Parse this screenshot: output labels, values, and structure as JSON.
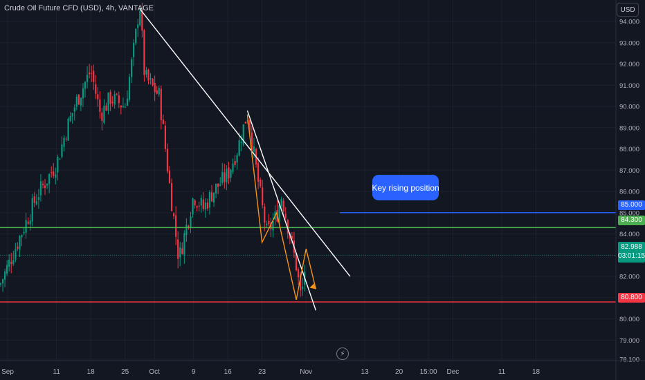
{
  "header": {
    "symbol_title": "Crude Oil Future CFD (USD), 4h, VANTAGE",
    "currency": "USD"
  },
  "annotation": {
    "callout_text": "Key rising position"
  },
  "price_tags": {
    "blue": {
      "label": "85.000",
      "color": "#2962ff"
    },
    "green": {
      "label": "84.300",
      "color": "#4caf50"
    },
    "red": {
      "label": "80.800",
      "color": "#f23645"
    },
    "last_price": "82.988",
    "countdown": "03:01:15"
  },
  "icons": {
    "bottom": "lightning-icon"
  },
  "chart_data": {
    "type": "candlestick",
    "y_axis": {
      "range": [
        77.9,
        94.9
      ],
      "ticks": [
        "78.100",
        "79.000",
        "80.000",
        "81.000",
        "82.000",
        "83.000",
        "84.000",
        "85.000",
        "86.000",
        "87.000",
        "88.000",
        "89.000",
        "90.000",
        "91.000",
        "92.000",
        "93.000",
        "94.000"
      ]
    },
    "x_axis": {
      "ticks": [
        "Sep",
        "11",
        "18",
        "25",
        "Oct",
        "9",
        "16",
        "23",
        "Nov",
        "13",
        "20",
        "15:00",
        "Dec",
        "11",
        "18"
      ]
    },
    "price_path": [
      [
        "Sep 5",
        81.6
      ],
      [
        "Sep 7",
        85.8
      ],
      [
        "Sep 11",
        87.3
      ],
      [
        "Sep 13",
        88.9
      ],
      [
        "Sep 15",
        90.2
      ],
      [
        "Sep 18",
        91.7
      ],
      [
        "Sep 20",
        89.6
      ],
      [
        "Sep 22",
        90.4
      ],
      [
        "Sep 25",
        90.0
      ],
      [
        "Sep 27",
        93.0
      ],
      [
        "Sep 28",
        94.9
      ],
      [
        "Sep 29",
        91.4
      ],
      [
        "Oct 2",
        90.5
      ],
      [
        "Oct 4",
        86.5
      ],
      [
        "Oct 6",
        82.8
      ],
      [
        "Oct 9",
        85.8
      ],
      [
        "Oct 11",
        85.2
      ],
      [
        "Oct 13",
        86.0
      ],
      [
        "Oct 16",
        86.8
      ],
      [
        "Oct 18",
        88.0
      ],
      [
        "Oct 20",
        89.7
      ],
      [
        "Oct 23",
        85.3
      ],
      [
        "Oct 24",
        84.0
      ],
      [
        "Oct 26",
        84.9
      ],
      [
        "Oct 27",
        85.8
      ],
      [
        "Oct 30",
        82.5
      ],
      [
        "Oct 31",
        80.9
      ],
      [
        "Nov 1",
        82.9
      ]
    ],
    "horizontal_levels": [
      {
        "value": 85.0,
        "color": "#2962ff"
      },
      {
        "value": 84.3,
        "color": "#4caf50"
      },
      {
        "value": 80.8,
        "color": "#f23645"
      }
    ],
    "trend_lines": [
      {
        "from": [
          "Sep 28",
          94.6
        ],
        "to": [
          "Nov 10",
          82.0
        ],
        "color": "#ffffff"
      },
      {
        "from": [
          "Oct 20",
          89.8
        ],
        "to": [
          "Nov 3",
          80.4
        ],
        "color": "#ffffff"
      }
    ],
    "projection_path": [
      [
        "Oct 20",
        89.6
      ],
      [
        "Oct 23",
        83.6
      ],
      [
        "Oct 26",
        85.0
      ],
      [
        "Oct 30",
        80.9
      ],
      [
        "Nov 1",
        83.3
      ],
      [
        "Nov 3",
        81.4
      ]
    ],
    "last_price": 82.988,
    "up_color": "#089981",
    "down_color": "#f23645"
  }
}
